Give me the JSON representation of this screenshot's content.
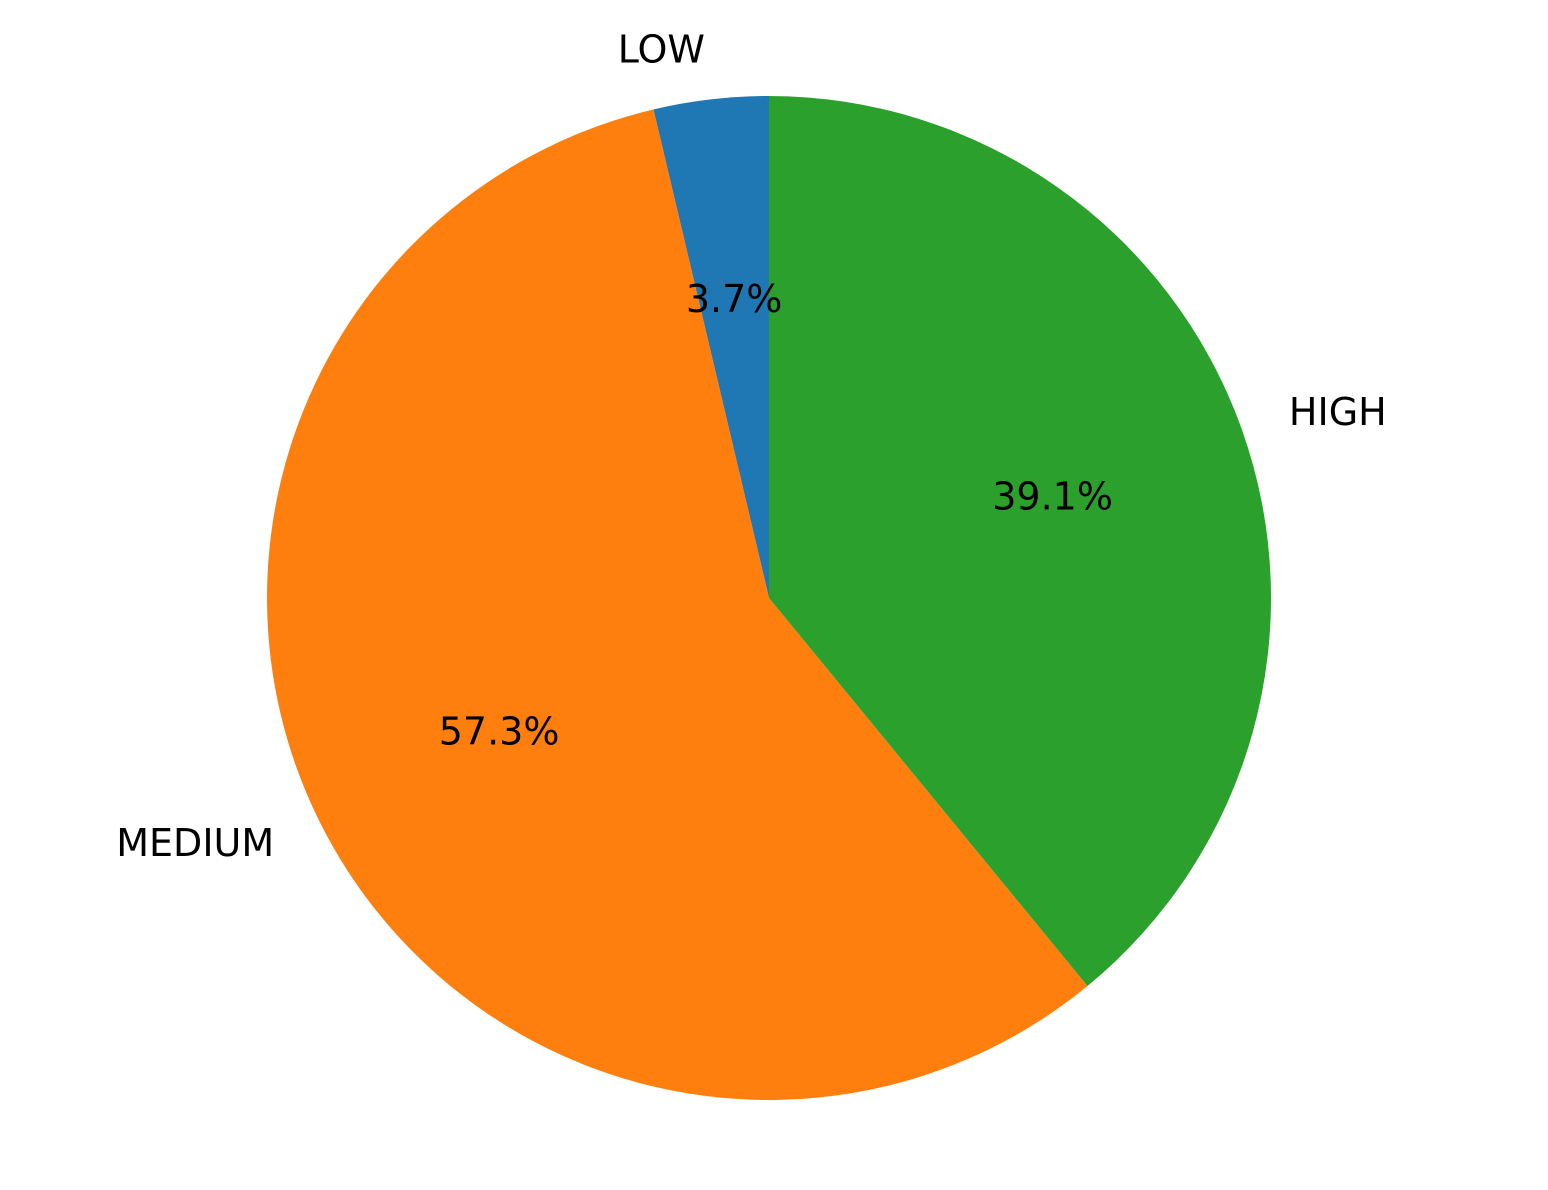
{
  "chart_data": {
    "type": "pie",
    "categories": [
      "LOW",
      "MEDIUM",
      "HIGH"
    ],
    "values": [
      3.7,
      57.3,
      39.1
    ],
    "labels": [
      "3.7%",
      "57.3%",
      "39.1%"
    ],
    "colors": [
      "#1f77b4",
      "#ff7f0e",
      "#2ca02c"
    ],
    "start_angle_deg": 90,
    "direction": "counterclockwise",
    "title": "",
    "legend": "none"
  }
}
